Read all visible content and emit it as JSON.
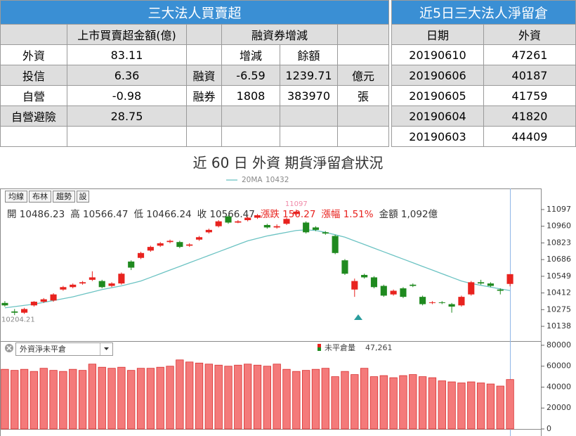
{
  "left_table": {
    "title": "三大法人買賣超",
    "amount_header": "上市買賣超金額(億)",
    "margin_header": "融資券增減",
    "rows": [
      {
        "label": "外資",
        "amount": "83.11",
        "change": "增減",
        "balance": "餘額"
      },
      {
        "label": "投信",
        "amount": "6.36",
        "margin_type": "融資",
        "change": "-6.59",
        "balance": "1239.71",
        "unit": "億元"
      },
      {
        "label": "自營",
        "amount": "-0.98",
        "margin_type": "融券",
        "change": "1808",
        "balance": "383970",
        "unit": "張"
      },
      {
        "label": "自營避險",
        "amount": "28.75"
      },
      {}
    ]
  },
  "right_table": {
    "title": "近5日三大法人淨留倉",
    "columns": [
      "日期",
      "外資"
    ],
    "rows": [
      [
        "20190610",
        "47261"
      ],
      [
        "20190606",
        "40187"
      ],
      [
        "20190605",
        "41759"
      ],
      [
        "20190604",
        "41820"
      ],
      [
        "20190603",
        "44409"
      ]
    ]
  },
  "title": "近 60 日 外資 期貨淨留倉狀況",
  "toolbar": [
    "均線",
    "布林",
    "趨勢",
    "設"
  ],
  "info": [
    "開 10486.23",
    "高 10566.47",
    "低 10466.24",
    "收 10566.47",
    "漲跌 150.27",
    "漲幅 1.51%",
    "金額 1,092億"
  ],
  "low_marker": 10204.21,
  "chart_data": [
    {
      "type": "candlestick",
      "ylim": [
        10017,
        11270
      ],
      "yticks": [
        11097,
        10960,
        10823,
        10686,
        10549,
        10412,
        10275,
        10138
      ],
      "up_color": "#e8231f",
      "down_color": "#1f8a1f",
      "open": [
        10330,
        10260,
        10250,
        10310,
        10340,
        10350,
        10440,
        10460,
        10490,
        10520,
        10510,
        10470,
        10490,
        10670,
        10700,
        10760,
        10800,
        10830,
        10830,
        10800,
        10850,
        10910,
        10960,
        11040,
        10990,
        11010,
        11030,
        10970,
        10950,
        10980,
        11060,
        10990,
        10950,
        10910,
        10880,
        10680,
        10440,
        10560,
        10540,
        10470,
        10400,
        10450,
        10480,
        10380,
        10330,
        10335,
        10320,
        10310,
        10400,
        10500,
        10490,
        10440,
        10486.23
      ],
      "close": [
        10310,
        10250,
        10280,
        10340,
        10360,
        10400,
        10460,
        10480,
        10500,
        10540,
        10460,
        10490,
        10570,
        10620,
        10740,
        10790,
        10820,
        10840,
        10790,
        10810,
        10870,
        10930,
        11000,
        10990,
        11000,
        11030,
        11050,
        10950,
        10960,
        11020,
        11080,
        10910,
        10930,
        10900,
        10740,
        10570,
        10510,
        10540,
        10460,
        10390,
        10430,
        10380,
        10470,
        10320,
        10335,
        10330,
        10300,
        10380,
        10500,
        10490,
        10470,
        10430,
        10566.47
      ],
      "high": [
        10345,
        10280,
        10290,
        10345,
        10370,
        10410,
        10470,
        10490,
        10510,
        10590,
        10520,
        10500,
        10580,
        10680,
        10750,
        10800,
        10830,
        10850,
        10840,
        10820,
        10880,
        10940,
        11010,
        11050,
        11010,
        11040,
        11060,
        10980,
        10975,
        11030,
        11097,
        11000,
        10960,
        10920,
        10890,
        10690,
        10530,
        10570,
        10550,
        10480,
        10440,
        10460,
        10490,
        10390,
        10345,
        10345,
        10330,
        10390,
        10510,
        10520,
        10500,
        10450,
        10566.47
      ],
      "low": [
        10300,
        10230,
        10240,
        10300,
        10330,
        10340,
        10430,
        10450,
        10480,
        10510,
        10450,
        10460,
        10480,
        10600,
        10690,
        10750,
        10790,
        10820,
        10780,
        10790,
        10840,
        10900,
        10950,
        10980,
        10985,
        11000,
        11020,
        10940,
        10940,
        10970,
        11050,
        10900,
        10920,
        10890,
        10730,
        10560,
        10380,
        10530,
        10450,
        10380,
        10390,
        10370,
        10460,
        10310,
        10320,
        10320,
        10250,
        10300,
        10390,
        10480,
        10460,
        10400,
        10466.24
      ],
      "ma": {
        "name": "20MA",
        "color": "#6cc3c3",
        "values": [
          10290,
          10300,
          10310,
          10320,
          10335,
          10350,
          10365,
          10380,
          10400,
          10420,
          10440,
          10455,
          10470,
          10490,
          10510,
          10540,
          10570,
          10600,
          10630,
          10660,
          10690,
          10720,
          10750,
          10780,
          10810,
          10840,
          10860,
          10880,
          10895,
          10910,
          10925,
          10930,
          10925,
          10910,
          10890,
          10870,
          10840,
          10810,
          10780,
          10750,
          10720,
          10690,
          10660,
          10630,
          10600,
          10570,
          10540,
          10510,
          10490,
          10475,
          10460,
          10445,
          10432
        ]
      }
    },
    {
      "type": "bar",
      "selector": "外資淨未平倉",
      "legend": "未平倉量",
      "legend_value": "47,261",
      "color": "#f47a7a",
      "ylim": [
        0,
        84000
      ],
      "yticks": [
        80000,
        60000,
        40000,
        20000,
        0
      ],
      "values": [
        57000,
        56000,
        57000,
        55000,
        58000,
        56000,
        55000,
        57000,
        56000,
        62000,
        59000,
        58000,
        59000,
        56000,
        58000,
        58000,
        59000,
        60000,
        66000,
        64000,
        63000,
        62000,
        61000,
        60000,
        61000,
        62000,
        61000,
        60000,
        62000,
        57000,
        55000,
        56000,
        57000,
        58000,
        50000,
        55000,
        52000,
        58000,
        50000,
        51000,
        49000,
        51000,
        52000,
        50000,
        49000,
        46000,
        45000,
        44000,
        45000,
        44000,
        43000,
        41000,
        47261
      ]
    }
  ]
}
